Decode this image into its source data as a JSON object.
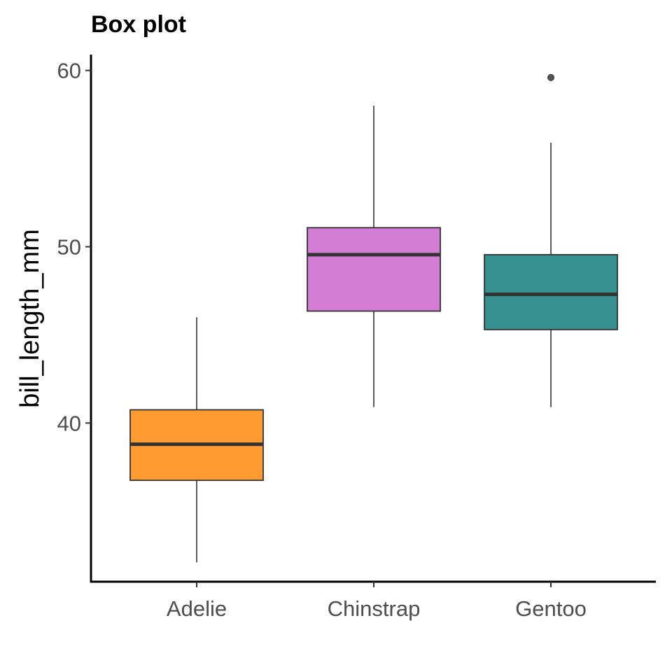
{
  "chart_data": {
    "type": "box",
    "title": "Box plot",
    "xlabel": "",
    "ylabel": "bill_length_mm",
    "ylim": [
      31,
      60.9
    ],
    "yticks": [
      40,
      50,
      60
    ],
    "grid": false,
    "legend": "none",
    "categories": [
      "Adelie",
      "Chinstrap",
      "Gentoo"
    ],
    "boxes": [
      {
        "name": "Adelie",
        "whisker_low": 32.1,
        "q1": 36.75,
        "median": 38.8,
        "q3": 40.75,
        "whisker_high": 46.0,
        "outliers": [],
        "color": "#FF9B31"
      },
      {
        "name": "Chinstrap",
        "whisker_low": 40.9,
        "q1": 46.35,
        "median": 49.55,
        "q3": 51.08,
        "whisker_high": 58.0,
        "outliers": [],
        "color": "#D37DD5"
      },
      {
        "name": "Gentoo",
        "whisker_low": 40.9,
        "q1": 45.3,
        "median": 47.3,
        "q3": 49.55,
        "whisker_high": 55.9,
        "outliers": [
          59.6
        ],
        "color": "#35908F"
      }
    ]
  }
}
